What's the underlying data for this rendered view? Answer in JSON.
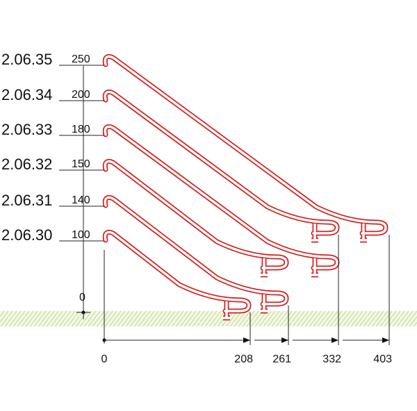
{
  "items": [
    {
      "code": "2.06.35",
      "height": 250
    },
    {
      "code": "2.06.34",
      "height": 200
    },
    {
      "code": "2.06.33",
      "height": 180
    },
    {
      "code": "2.06.32",
      "height": 150
    },
    {
      "code": "2.06.31",
      "height": 140
    },
    {
      "code": "2.06.30",
      "height": 100
    }
  ],
  "vertical_origin": 0,
  "widths": [
    0,
    208,
    261,
    332,
    403
  ]
}
